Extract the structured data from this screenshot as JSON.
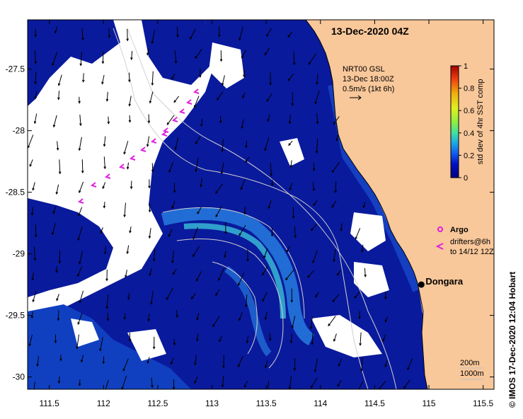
{
  "map": {
    "title": "13-Dec-2020 04Z",
    "x_ticks": [
      "111.5",
      "112",
      "112.5",
      "113",
      "113.5",
      "114",
      "114.5",
      "115",
      "115.5"
    ],
    "y_ticks": [
      "-27.5",
      "-28",
      "-28.5",
      "-29",
      "-29.5",
      "-30"
    ],
    "x_range": [
      111.3,
      115.6
    ],
    "y_range": [
      -27.1,
      -30.1
    ]
  },
  "current_info": {
    "line1": "NRT00 GSL",
    "line2": "13-Dec 18:00Z",
    "line3": "0.5m/s (1kt 6h)"
  },
  "colorbar": {
    "label": "std dev of 4hr SST comp",
    "ticks": [
      "1",
      "0.8",
      "0.6",
      "0.4",
      "0.2",
      "0"
    ]
  },
  "legend": {
    "argo": "Argo",
    "drifters_line1": "drifters@6h",
    "drifters_line2": "to 14/12 12Z"
  },
  "place": {
    "name": "Dongara",
    "lon": 114.93,
    "lat": -29.25
  },
  "depth_legend": {
    "line1": "200m",
    "line2": "1000m"
  },
  "credit": "© IMOS 17-Dec-2020 12:04 Hobart",
  "colors": {
    "land": "#f8c79a",
    "no_data": "#ffffff",
    "ocean_low": "#0a1a9c",
    "ocean_mid": "#1a60e0",
    "ocean_high": "#30c8e0",
    "drifter": "#e020e0"
  }
}
